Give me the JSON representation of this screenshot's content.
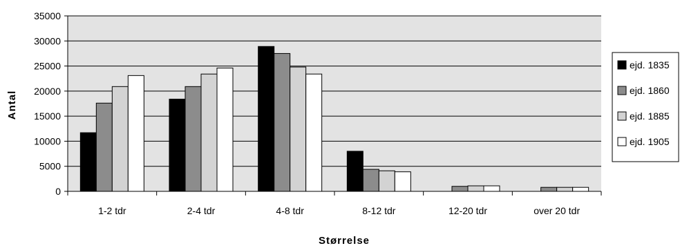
{
  "chart_data": {
    "type": "bar",
    "title": "",
    "xlabel": "Størrelse",
    "ylabel": "Antal",
    "ylim": [
      0,
      35000
    ],
    "yticks": [
      0,
      5000,
      10000,
      15000,
      20000,
      25000,
      30000,
      35000
    ],
    "categories": [
      "1-2 tdr",
      "2-4 tdr",
      "4-8 tdr",
      "8-12 tdr",
      "12-20 tdr",
      "over 20 tdr"
    ],
    "series": [
      {
        "name": "ejd. 1835",
        "color": "#000000",
        "values": [
          11700,
          18400,
          28900,
          8000,
          null,
          null
        ]
      },
      {
        "name": "ejd. 1860",
        "color": "#8c8c8c",
        "values": [
          17600,
          20900,
          27500,
          4400,
          1000,
          800
        ]
      },
      {
        "name": "ejd. 1885",
        "color": "#d3d3d3",
        "values": [
          20900,
          23400,
          24800,
          4100,
          1100,
          800
        ]
      },
      {
        "name": "ejd. 1905",
        "color": "#ffffff",
        "values": [
          23100,
          24600,
          23400,
          3900,
          1100,
          800
        ]
      }
    ],
    "grid": true,
    "plot_background": "#e3e3e3",
    "legend_position": "right"
  }
}
